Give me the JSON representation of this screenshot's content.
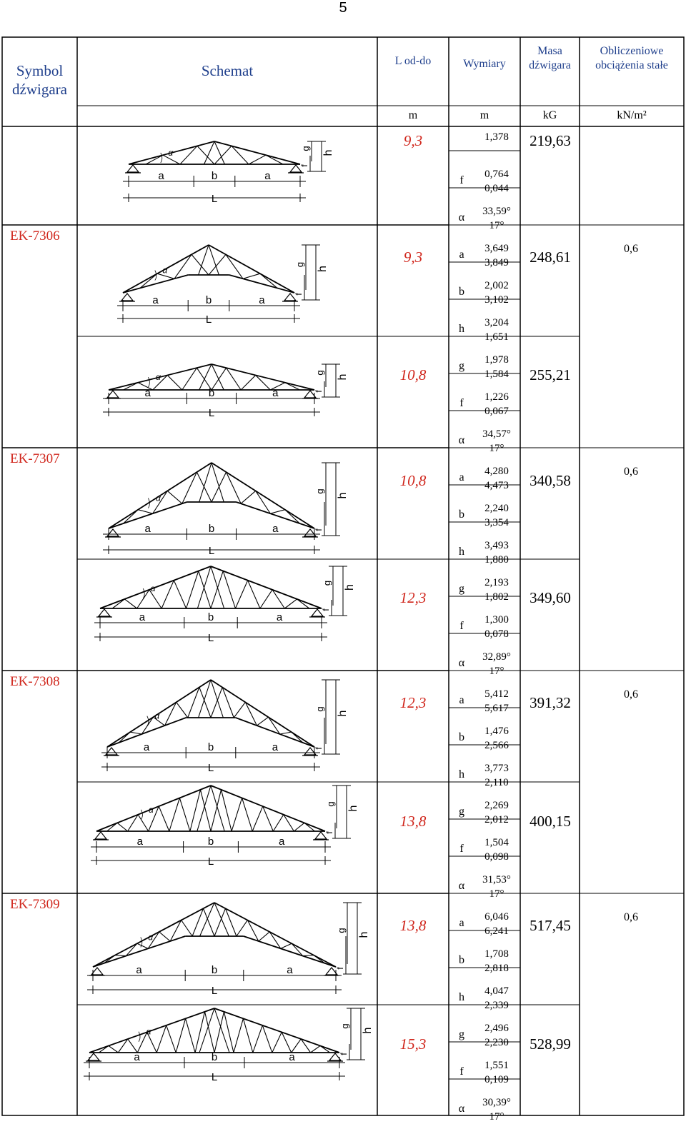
{
  "page_number": "5",
  "headers": {
    "symbol": "Symbol dźwigara",
    "schema": "Schemat",
    "span": "L od-do",
    "dims": "Wymiary",
    "mass": "Masa dźwigara",
    "load": "Obliczeniowe obciążenia stałe"
  },
  "units": {
    "span": "m",
    "dims": "m",
    "mass": "kG",
    "load": "kN/m²"
  },
  "symbols": [
    "EK-7306",
    "EK-7307",
    "EK-7308",
    "EK-7309"
  ],
  "loads": [
    "0,6",
    "0,6",
    "0,6",
    "0,6"
  ],
  "spans": [
    "9,3",
    "9,3",
    "10,8",
    "10,8",
    "12,3",
    "12,3",
    "13,8",
    "13,8",
    "15,3"
  ],
  "masses": [
    "219,63",
    "248,61",
    "255,21",
    "340,58",
    "349,60",
    "391,32",
    "400,15",
    "517,45",
    "528,99"
  ],
  "dim_labels": {
    "a": "a",
    "b": "b",
    "h": "h",
    "g": "g",
    "f": "f",
    "alpha": "α"
  },
  "dims": [
    {
      "l": "",
      "v1": "1,378",
      "v2": ""
    },
    {
      "l": "f",
      "v1": "0,764",
      "v2": "0,044"
    },
    {
      "l": "α",
      "v1": "33,59°",
      "v2": "17°"
    },
    {
      "l": "a",
      "v1": "3,649",
      "v2": "3,849"
    },
    {
      "l": "b",
      "v1": "2,002",
      "v2": "3,102"
    },
    {
      "l": "h",
      "v1": "3,204",
      "v2": "1,651"
    },
    {
      "l": "g",
      "v1": "1,978",
      "v2": "1,584"
    },
    {
      "l": "f",
      "v1": "1,226",
      "v2": "0,067"
    },
    {
      "l": "α",
      "v1": "34,57°",
      "v2": "17°"
    },
    {
      "l": "a",
      "v1": "4,280",
      "v2": "4,473"
    },
    {
      "l": "b",
      "v1": "2,240",
      "v2": "3,354"
    },
    {
      "l": "h",
      "v1": "3,493",
      "v2": "1,880"
    },
    {
      "l": "g",
      "v1": "2,193",
      "v2": "1,802"
    },
    {
      "l": "f",
      "v1": "1,300",
      "v2": "0,078"
    },
    {
      "l": "α",
      "v1": "32,89°",
      "v2": "17°"
    },
    {
      "l": "a",
      "v1": "5,412",
      "v2": "5,617"
    },
    {
      "l": "b",
      "v1": "1,476",
      "v2": "2,566"
    },
    {
      "l": "h",
      "v1": "3,773",
      "v2": "2,110"
    },
    {
      "l": "g",
      "v1": "2,269",
      "v2": "2,012"
    },
    {
      "l": "f",
      "v1": "1,504",
      "v2": "0,098"
    },
    {
      "l": "α",
      "v1": "31,53°",
      "v2": "17°"
    },
    {
      "l": "a",
      "v1": "6,046",
      "v2": "6,241"
    },
    {
      "l": "b",
      "v1": "1,708",
      "v2": "2,818"
    },
    {
      "l": "h",
      "v1": "4,047",
      "v2": "2,339"
    },
    {
      "l": "g",
      "v1": "2,496",
      "v2": "2,230"
    },
    {
      "l": "f",
      "v1": "1,551",
      "v2": "0,109"
    },
    {
      "l": "α",
      "v1": "30,39°",
      "v2": "17°"
    }
  ],
  "schema_labels": {
    "a": "a",
    "b": "b",
    "L": "L",
    "g": "g",
    "h": "h",
    "f": "f",
    "alpha": "α"
  },
  "colors": {
    "red": "#d0261c",
    "blue": "#1f3f8c"
  }
}
